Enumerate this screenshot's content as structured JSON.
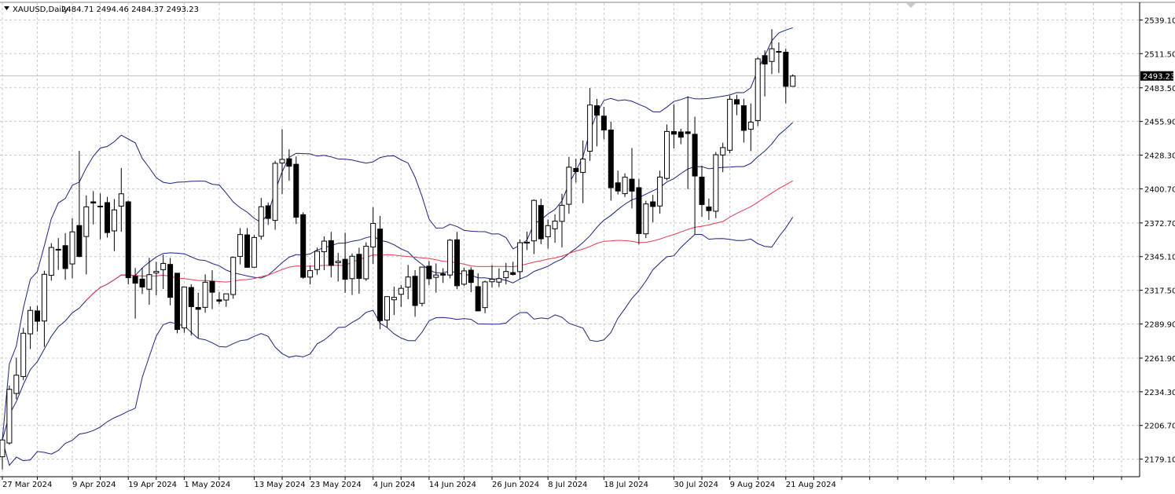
{
  "header": {
    "symbol": "XAUUSD,Daily",
    "ohlc": "2484.71 2494.46 2484.37 2493.23"
  },
  "current_price_label": "2493.23",
  "colors": {
    "background": "#ffffff",
    "grid": "#c8c8c8",
    "axis": "#000000",
    "bollinger": "#1a237e",
    "moving_average": "#e53950",
    "candle_bull_fill": "#ffffff",
    "candle_bear_fill": "#000000",
    "candle_outline": "#000000",
    "price_tag_bg": "#000000",
    "price_line": "#c0c0c0"
  },
  "chart_data": {
    "type": "candlestick",
    "symbol": "XAUUSD",
    "timeframe": "Daily",
    "grid": true,
    "y_axis_side": "right",
    "ylim": [
      2165.3,
      2552.9
    ],
    "y_ticks": [
      "2539.10",
      "2511.50",
      "2483.50",
      "2455.90",
      "2428.30",
      "2400.70",
      "2372.70",
      "2345.10",
      "2317.50",
      "2289.90",
      "2261.90",
      "2234.30",
      "2206.70",
      "2179.10"
    ],
    "x_labels": [
      {
        "bar": 0,
        "text": "27 Mar 2024"
      },
      {
        "bar": 10,
        "text": "9 Apr 2024"
      },
      {
        "bar": 18,
        "text": "19 Apr 2024"
      },
      {
        "bar": 26,
        "text": "1 May 2024"
      },
      {
        "bar": 36,
        "text": "13 May 2024"
      },
      {
        "bar": 44,
        "text": "23 May 2024"
      },
      {
        "bar": 53,
        "text": "4 Jun 2024"
      },
      {
        "bar": 61,
        "text": "14 Jun 2024"
      },
      {
        "bar": 70,
        "text": "26 Jun 2024"
      },
      {
        "bar": 78,
        "text": "8 Jul 2024"
      },
      {
        "bar": 86,
        "text": "18 Jul 2024"
      },
      {
        "bar": 96,
        "text": "30 Jul 2024"
      },
      {
        "bar": 104,
        "text": "9 Aug 2024"
      },
      {
        "bar": 112,
        "text": "21 Aug 2024"
      }
    ],
    "current_price": 2493.23,
    "candles": [
      {
        "o": 2181.0,
        "h": 2195.5,
        "l": 2170.6,
        "c": 2194.8
      },
      {
        "o": 2192.3,
        "h": 2239.4,
        "l": 2190.9,
        "c": 2236.3
      },
      {
        "o": 2232.9,
        "h": 2262.3,
        "l": 2228.1,
        "c": 2247.9
      },
      {
        "o": 2246.8,
        "h": 2286.7,
        "l": 2243.9,
        "c": 2282.3
      },
      {
        "o": 2281.8,
        "h": 2304.3,
        "l": 2269.3,
        "c": 2301.0
      },
      {
        "o": 2300.6,
        "h": 2304.8,
        "l": 2283.6,
        "c": 2292.1
      },
      {
        "o": 2292.3,
        "h": 2333.5,
        "l": 2271.1,
        "c": 2330.6
      },
      {
        "o": 2329.8,
        "h": 2356.2,
        "l": 2325.4,
        "c": 2352.6
      },
      {
        "o": 2351.1,
        "h": 2360.3,
        "l": 2334.2,
        "c": 2351.1
      },
      {
        "o": 2354.1,
        "h": 2364.4,
        "l": 2326.1,
        "c": 2335.3
      },
      {
        "o": 2339.1,
        "h": 2376.6,
        "l": 2327.3,
        "c": 2365.4
      },
      {
        "o": 2370.6,
        "h": 2431.7,
        "l": 2344.5,
        "c": 2345.2
      },
      {
        "o": 2361.6,
        "h": 2395.3,
        "l": 2330.5,
        "c": 2385.9
      },
      {
        "o": 2390.0,
        "h": 2398.8,
        "l": 2371.5,
        "c": 2389.0
      },
      {
        "o": 2386.5,
        "h": 2396.9,
        "l": 2359.3,
        "c": 2386.5
      },
      {
        "o": 2389.4,
        "h": 2394.1,
        "l": 2360.7,
        "c": 2364.8
      },
      {
        "o": 2366.2,
        "h": 2392.3,
        "l": 2349.6,
        "c": 2383.4
      },
      {
        "o": 2386.5,
        "h": 2417.8,
        "l": 2365.4,
        "c": 2396.6
      },
      {
        "o": 2390.0,
        "h": 2391.1,
        "l": 2322.3,
        "c": 2327.8
      },
      {
        "o": 2329.0,
        "h": 2335.8,
        "l": 2294.3,
        "c": 2323.3
      },
      {
        "o": 2326.7,
        "h": 2335.7,
        "l": 2314.4,
        "c": 2320.2
      },
      {
        "o": 2318.4,
        "h": 2344.1,
        "l": 2305.6,
        "c": 2330.3
      },
      {
        "o": 2331.7,
        "h": 2340.9,
        "l": 2313.4,
        "c": 2333.0
      },
      {
        "o": 2334.4,
        "h": 2346.7,
        "l": 2318.5,
        "c": 2339.5
      },
      {
        "o": 2338.7,
        "h": 2344.0,
        "l": 2305.2,
        "c": 2311.7
      },
      {
        "o": 2331.5,
        "h": 2331.5,
        "l": 2282.2,
        "c": 2285.4
      },
      {
        "o": 2286.7,
        "h": 2320.2,
        "l": 2282.7,
        "c": 2320.2
      },
      {
        "o": 2319.8,
        "h": 2322.4,
        "l": 2280.5,
        "c": 2304.1
      },
      {
        "o": 2303.4,
        "h": 2315.4,
        "l": 2278.4,
        "c": 2301.9
      },
      {
        "o": 2303.5,
        "h": 2330.6,
        "l": 2299.1,
        "c": 2324.1
      },
      {
        "o": 2324.7,
        "h": 2333.9,
        "l": 2302.0,
        "c": 2315.9
      },
      {
        "o": 2309.7,
        "h": 2316.0,
        "l": 2306.2,
        "c": 2308.6
      },
      {
        "o": 2309.5,
        "h": 2313.8,
        "l": 2303.9,
        "c": 2314.6
      },
      {
        "o": 2314.0,
        "h": 2345.2,
        "l": 2310.6,
        "c": 2344.5
      },
      {
        "o": 2345.3,
        "h": 2368.5,
        "l": 2338.7,
        "c": 2363.2
      },
      {
        "o": 2362.9,
        "h": 2368.5,
        "l": 2336.2,
        "c": 2336.3
      },
      {
        "o": 2336.4,
        "h": 2362.8,
        "l": 2336.4,
        "c": 2360.8
      },
      {
        "o": 2361.8,
        "h": 2393.2,
        "l": 2359.1,
        "c": 2386.0
      },
      {
        "o": 2386.8,
        "h": 2389.5,
        "l": 2371.1,
        "c": 2376.4
      },
      {
        "o": 2374.8,
        "h": 2423.7,
        "l": 2367.1,
        "c": 2421.6
      },
      {
        "o": 2421.8,
        "h": 2449.6,
        "l": 2396.3,
        "c": 2424.8
      },
      {
        "o": 2425.3,
        "h": 2433.1,
        "l": 2407.3,
        "c": 2419.2
      },
      {
        "o": 2420.8,
        "h": 2427.2,
        "l": 2371.8,
        "c": 2377.4
      },
      {
        "o": 2379.5,
        "h": 2381.5,
        "l": 2326.9,
        "c": 2328.1
      },
      {
        "o": 2328.3,
        "h": 2337.8,
        "l": 2322.3,
        "c": 2333.6
      },
      {
        "o": 2334.5,
        "h": 2352.5,
        "l": 2330.3,
        "c": 2349.5
      },
      {
        "o": 2349.1,
        "h": 2361.7,
        "l": 2334.0,
        "c": 2357.8
      },
      {
        "o": 2358.2,
        "h": 2365.4,
        "l": 2328.1,
        "c": 2337.9
      },
      {
        "o": 2340.1,
        "h": 2348.1,
        "l": 2324.7,
        "c": 2341.3
      },
      {
        "o": 2342.9,
        "h": 2364.7,
        "l": 2315.4,
        "c": 2326.5
      },
      {
        "o": 2327.0,
        "h": 2347.7,
        "l": 2313.7,
        "c": 2345.4
      },
      {
        "o": 2347.0,
        "h": 2352.4,
        "l": 2314.7,
        "c": 2327.2
      },
      {
        "o": 2326.9,
        "h": 2356.8,
        "l": 2325.2,
        "c": 2353.6
      },
      {
        "o": 2353.0,
        "h": 2385.6,
        "l": 2339.1,
        "c": 2372.3
      },
      {
        "o": 2367.7,
        "h": 2378.4,
        "l": 2285.6,
        "c": 2292.6
      },
      {
        "o": 2293.1,
        "h": 2312.3,
        "l": 2286.9,
        "c": 2312.3
      },
      {
        "o": 2309.7,
        "h": 2320.5,
        "l": 2297.2,
        "c": 2311.7
      },
      {
        "o": 2314.2,
        "h": 2321.9,
        "l": 2303.9,
        "c": 2319.1
      },
      {
        "o": 2320.1,
        "h": 2338.3,
        "l": 2310.2,
        "c": 2328.4
      },
      {
        "o": 2329.0,
        "h": 2334.0,
        "l": 2295.8,
        "c": 2305.0
      },
      {
        "o": 2306.8,
        "h": 2336.5,
        "l": 2304.3,
        "c": 2336.5
      },
      {
        "o": 2337.3,
        "h": 2341.5,
        "l": 2321.6,
        "c": 2327.0
      },
      {
        "o": 2328.1,
        "h": 2339.5,
        "l": 2315.5,
        "c": 2330.0
      },
      {
        "o": 2331.0,
        "h": 2335.6,
        "l": 2323.5,
        "c": 2329.9
      },
      {
        "o": 2330.0,
        "h": 2359.5,
        "l": 2327.2,
        "c": 2358.6
      },
      {
        "o": 2358.9,
        "h": 2365.3,
        "l": 2318.4,
        "c": 2321.2
      },
      {
        "o": 2322.5,
        "h": 2335.9,
        "l": 2321.1,
        "c": 2333.4
      },
      {
        "o": 2334.0,
        "h": 2336.4,
        "l": 2316.0,
        "c": 2323.9
      },
      {
        "o": 2320.5,
        "h": 2331.5,
        "l": 2301.9,
        "c": 2300.6
      },
      {
        "o": 2303.3,
        "h": 2325.4,
        "l": 2298.7,
        "c": 2324.4
      },
      {
        "o": 2324.5,
        "h": 2338.2,
        "l": 2319.8,
        "c": 2326.5
      },
      {
        "o": 2324.2,
        "h": 2335.5,
        "l": 2320.1,
        "c": 2327.1
      },
      {
        "o": 2327.8,
        "h": 2339.9,
        "l": 2322.3,
        "c": 2332.9
      },
      {
        "o": 2332.0,
        "h": 2340.9,
        "l": 2329.6,
        "c": 2330.5
      },
      {
        "o": 2332.8,
        "h": 2359.1,
        "l": 2326.4,
        "c": 2356.5
      },
      {
        "o": 2356.2,
        "h": 2365.5,
        "l": 2350.5,
        "c": 2356.9
      },
      {
        "o": 2358.0,
        "h": 2392.0,
        "l": 2347.2,
        "c": 2391.2
      },
      {
        "o": 2387.0,
        "h": 2392.5,
        "l": 2355.3,
        "c": 2359.7
      },
      {
        "o": 2361.4,
        "h": 2375.6,
        "l": 2351.7,
        "c": 2370.5
      },
      {
        "o": 2367.9,
        "h": 2379.8,
        "l": 2356.5,
        "c": 2374.2
      },
      {
        "o": 2374.0,
        "h": 2396.6,
        "l": 2352.7,
        "c": 2387.2
      },
      {
        "o": 2388.0,
        "h": 2426.9,
        "l": 2380.2,
        "c": 2418.4
      },
      {
        "o": 2417.4,
        "h": 2425.3,
        "l": 2405.8,
        "c": 2414.8
      },
      {
        "o": 2414.1,
        "h": 2440.3,
        "l": 2388.9,
        "c": 2425.1
      },
      {
        "o": 2431.5,
        "h": 2483.3,
        "l": 2423.6,
        "c": 2469.4
      },
      {
        "o": 2468.8,
        "h": 2474.4,
        "l": 2435.5,
        "c": 2461.1
      },
      {
        "o": 2460.3,
        "h": 2467.9,
        "l": 2441.2,
        "c": 2448.9
      },
      {
        "o": 2448.9,
        "h": 2455.7,
        "l": 2391.0,
        "c": 2401.6
      },
      {
        "o": 2405.6,
        "h": 2415.6,
        "l": 2396.1,
        "c": 2398.9
      },
      {
        "o": 2396.7,
        "h": 2413.4,
        "l": 2394.0,
        "c": 2410.2
      },
      {
        "o": 2408.6,
        "h": 2434.1,
        "l": 2384.6,
        "c": 2398.8
      },
      {
        "o": 2401.6,
        "h": 2408.8,
        "l": 2355.2,
        "c": 2364.0
      },
      {
        "o": 2363.8,
        "h": 2390.9,
        "l": 2360.3,
        "c": 2388.3
      },
      {
        "o": 2390.0,
        "h": 2395.7,
        "l": 2373.2,
        "c": 2386.2
      },
      {
        "o": 2386.6,
        "h": 2415.6,
        "l": 2380.3,
        "c": 2410.3
      },
      {
        "o": 2409.2,
        "h": 2453.4,
        "l": 2407.6,
        "c": 2447.7
      },
      {
        "o": 2447.6,
        "h": 2469.8,
        "l": 2433.8,
        "c": 2445.5
      },
      {
        "o": 2447.3,
        "h": 2449.9,
        "l": 2437.3,
        "c": 2443.0
      },
      {
        "o": 2447.4,
        "h": 2476.5,
        "l": 2400.4,
        "c": 2446.0
      },
      {
        "o": 2445.4,
        "h": 2459.8,
        "l": 2363.2,
        "c": 2411.2
      },
      {
        "o": 2410.3,
        "h": 2419.6,
        "l": 2377.8,
        "c": 2387.8
      },
      {
        "o": 2385.8,
        "h": 2392.7,
        "l": 2375.2,
        "c": 2382.8
      },
      {
        "o": 2382.3,
        "h": 2430.9,
        "l": 2376.6,
        "c": 2428.6
      },
      {
        "o": 2428.4,
        "h": 2438.5,
        "l": 2414.3,
        "c": 2434.5
      },
      {
        "o": 2432.3,
        "h": 2477.1,
        "l": 2429.8,
        "c": 2474.1
      },
      {
        "o": 2473.8,
        "h": 2477.7,
        "l": 2461.1,
        "c": 2470.2
      },
      {
        "o": 2468.8,
        "h": 2474.5,
        "l": 2438.6,
        "c": 2448.6
      },
      {
        "o": 2449.5,
        "h": 2470.7,
        "l": 2431.6,
        "c": 2455.4
      },
      {
        "o": 2456.7,
        "h": 2508.7,
        "l": 2452.2,
        "c": 2507.2
      },
      {
        "o": 2509.9,
        "h": 2514.2,
        "l": 2476.4,
        "c": 2503.0
      },
      {
        "o": 2505.1,
        "h": 2531.6,
        "l": 2494.6,
        "c": 2515.5
      },
      {
        "o": 2513.3,
        "h": 2520.7,
        "l": 2495.7,
        "c": 2512.7
      },
      {
        "o": 2512.7,
        "h": 2515.6,
        "l": 2470.8,
        "c": 2484.7
      },
      {
        "o": 2484.7,
        "h": 2494.5,
        "l": 2484.4,
        "c": 2493.2
      }
    ]
  }
}
